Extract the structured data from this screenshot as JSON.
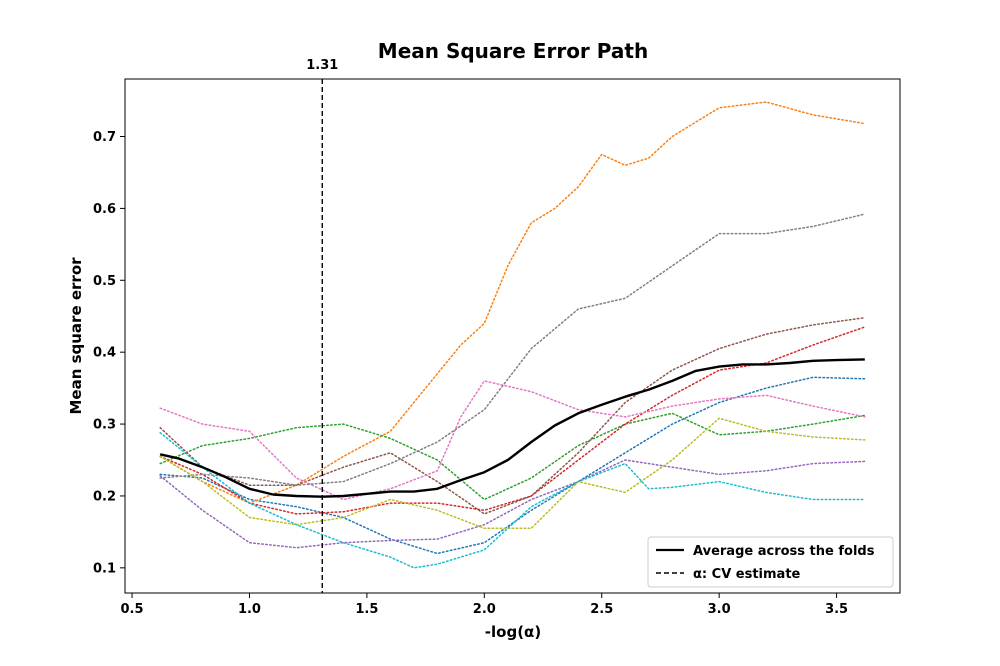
{
  "chart_data": {
    "type": "line",
    "title": "Mean Square Error Path",
    "xlabel": "-log(α)",
    "ylabel": "Mean square error",
    "xlim": [
      0.47,
      3.77
    ],
    "ylim": [
      0.065,
      0.78
    ],
    "xticks": [
      0.5,
      1.0,
      1.5,
      2.0,
      2.5,
      3.0,
      3.5
    ],
    "xtick_labels": [
      "0.5",
      "1.0",
      "1.5",
      "2.0",
      "2.5",
      "3.0",
      "3.5"
    ],
    "yticks": [
      0.1,
      0.2,
      0.3,
      0.4,
      0.5,
      0.6,
      0.7
    ],
    "ytick_labels": [
      "0.1",
      "0.2",
      "0.3",
      "0.4",
      "0.5",
      "0.6",
      "0.7"
    ],
    "grid": false,
    "legend_position": "bottom-right",
    "vline": {
      "x": 1.31,
      "label": "1.31",
      "style": "dashed",
      "color": "#000000"
    },
    "legend": [
      {
        "label": "Average across the folds",
        "style": "solid"
      },
      {
        "label": "α: CV estimate",
        "style": "dashed"
      }
    ],
    "mean": {
      "color": "#000000",
      "points": [
        [
          0.62,
          0.258
        ],
        [
          0.7,
          0.252
        ],
        [
          0.8,
          0.24
        ],
        [
          0.9,
          0.226
        ],
        [
          1.0,
          0.21
        ],
        [
          1.1,
          0.202
        ],
        [
          1.2,
          0.2
        ],
        [
          1.31,
          0.199
        ],
        [
          1.4,
          0.2
        ],
        [
          1.5,
          0.203
        ],
        [
          1.6,
          0.206
        ],
        [
          1.7,
          0.206
        ],
        [
          1.8,
          0.21
        ],
        [
          1.9,
          0.222
        ],
        [
          2.0,
          0.233
        ],
        [
          2.1,
          0.25
        ],
        [
          2.2,
          0.275
        ],
        [
          2.3,
          0.298
        ],
        [
          2.4,
          0.315
        ],
        [
          2.5,
          0.327
        ],
        [
          2.6,
          0.338
        ],
        [
          2.7,
          0.348
        ],
        [
          2.8,
          0.36
        ],
        [
          2.9,
          0.374
        ],
        [
          3.0,
          0.38
        ],
        [
          3.1,
          0.383
        ],
        [
          3.2,
          0.383
        ],
        [
          3.3,
          0.385
        ],
        [
          3.4,
          0.388
        ],
        [
          3.5,
          0.389
        ],
        [
          3.62,
          0.39
        ]
      ]
    },
    "series": [
      {
        "color": "#1f77b4",
        "points": [
          [
            0.62,
            0.23
          ],
          [
            0.8,
            0.225
          ],
          [
            1.0,
            0.195
          ],
          [
            1.2,
            0.185
          ],
          [
            1.4,
            0.17
          ],
          [
            1.6,
            0.14
          ],
          [
            1.8,
            0.12
          ],
          [
            2.0,
            0.135
          ],
          [
            2.2,
            0.18
          ],
          [
            2.4,
            0.22
          ],
          [
            2.6,
            0.26
          ],
          [
            2.8,
            0.3
          ],
          [
            3.0,
            0.33
          ],
          [
            3.2,
            0.35
          ],
          [
            3.4,
            0.365
          ],
          [
            3.62,
            0.363
          ]
        ]
      },
      {
        "color": "#ff7f0e",
        "points": [
          [
            0.62,
            0.255
          ],
          [
            0.8,
            0.22
          ],
          [
            1.0,
            0.19
          ],
          [
            1.2,
            0.215
          ],
          [
            1.4,
            0.255
          ],
          [
            1.6,
            0.29
          ],
          [
            1.8,
            0.37
          ],
          [
            1.9,
            0.41
          ],
          [
            2.0,
            0.44
          ],
          [
            2.1,
            0.52
          ],
          [
            2.2,
            0.58
          ],
          [
            2.3,
            0.6
          ],
          [
            2.4,
            0.63
          ],
          [
            2.5,
            0.675
          ],
          [
            2.6,
            0.66
          ],
          [
            2.7,
            0.67
          ],
          [
            2.8,
            0.7
          ],
          [
            3.0,
            0.74
          ],
          [
            3.2,
            0.748
          ],
          [
            3.4,
            0.73
          ],
          [
            3.62,
            0.718
          ]
        ]
      },
      {
        "color": "#2ca02c",
        "points": [
          [
            0.62,
            0.245
          ],
          [
            0.8,
            0.27
          ],
          [
            1.0,
            0.28
          ],
          [
            1.2,
            0.295
          ],
          [
            1.4,
            0.3
          ],
          [
            1.6,
            0.28
          ],
          [
            1.8,
            0.25
          ],
          [
            2.0,
            0.195
          ],
          [
            2.2,
            0.225
          ],
          [
            2.4,
            0.27
          ],
          [
            2.6,
            0.3
          ],
          [
            2.8,
            0.315
          ],
          [
            3.0,
            0.285
          ],
          [
            3.2,
            0.29
          ],
          [
            3.4,
            0.3
          ],
          [
            3.62,
            0.312
          ]
        ]
      },
      {
        "color": "#d62728",
        "points": [
          [
            0.62,
            0.255
          ],
          [
            0.8,
            0.23
          ],
          [
            1.0,
            0.19
          ],
          [
            1.2,
            0.175
          ],
          [
            1.4,
            0.178
          ],
          [
            1.6,
            0.19
          ],
          [
            1.8,
            0.19
          ],
          [
            2.0,
            0.18
          ],
          [
            2.2,
            0.2
          ],
          [
            2.4,
            0.25
          ],
          [
            2.6,
            0.3
          ],
          [
            2.8,
            0.34
          ],
          [
            3.0,
            0.375
          ],
          [
            3.2,
            0.385
          ],
          [
            3.4,
            0.41
          ],
          [
            3.62,
            0.435
          ]
        ]
      },
      {
        "color": "#9467bd",
        "points": [
          [
            0.62,
            0.228
          ],
          [
            0.8,
            0.18
          ],
          [
            1.0,
            0.135
          ],
          [
            1.2,
            0.128
          ],
          [
            1.4,
            0.135
          ],
          [
            1.6,
            0.138
          ],
          [
            1.8,
            0.14
          ],
          [
            2.0,
            0.16
          ],
          [
            2.2,
            0.195
          ],
          [
            2.4,
            0.22
          ],
          [
            2.6,
            0.25
          ],
          [
            2.8,
            0.24
          ],
          [
            3.0,
            0.23
          ],
          [
            3.2,
            0.235
          ],
          [
            3.4,
            0.245
          ],
          [
            3.62,
            0.248
          ]
        ]
      },
      {
        "color": "#8c564b",
        "points": [
          [
            0.62,
            0.295
          ],
          [
            0.8,
            0.24
          ],
          [
            1.0,
            0.215
          ],
          [
            1.2,
            0.215
          ],
          [
            1.4,
            0.24
          ],
          [
            1.6,
            0.26
          ],
          [
            1.8,
            0.22
          ],
          [
            2.0,
            0.175
          ],
          [
            2.2,
            0.2
          ],
          [
            2.4,
            0.26
          ],
          [
            2.6,
            0.33
          ],
          [
            2.8,
            0.375
          ],
          [
            3.0,
            0.405
          ],
          [
            3.2,
            0.425
          ],
          [
            3.4,
            0.438
          ],
          [
            3.62,
            0.448
          ]
        ]
      },
      {
        "color": "#e377c2",
        "points": [
          [
            0.62,
            0.322
          ],
          [
            0.8,
            0.3
          ],
          [
            1.0,
            0.29
          ],
          [
            1.2,
            0.225
          ],
          [
            1.4,
            0.195
          ],
          [
            1.6,
            0.21
          ],
          [
            1.8,
            0.235
          ],
          [
            1.9,
            0.31
          ],
          [
            2.0,
            0.36
          ],
          [
            2.2,
            0.345
          ],
          [
            2.4,
            0.32
          ],
          [
            2.6,
            0.31
          ],
          [
            2.8,
            0.325
          ],
          [
            3.0,
            0.335
          ],
          [
            3.2,
            0.34
          ],
          [
            3.4,
            0.325
          ],
          [
            3.62,
            0.31
          ]
        ]
      },
      {
        "color": "#7f7f7f",
        "points": [
          [
            0.62,
            0.225
          ],
          [
            0.8,
            0.23
          ],
          [
            1.0,
            0.225
          ],
          [
            1.2,
            0.215
          ],
          [
            1.4,
            0.22
          ],
          [
            1.6,
            0.245
          ],
          [
            1.8,
            0.275
          ],
          [
            2.0,
            0.32
          ],
          [
            2.2,
            0.405
          ],
          [
            2.4,
            0.46
          ],
          [
            2.6,
            0.475
          ],
          [
            2.8,
            0.52
          ],
          [
            3.0,
            0.565
          ],
          [
            3.2,
            0.565
          ],
          [
            3.4,
            0.575
          ],
          [
            3.62,
            0.592
          ]
        ]
      },
      {
        "color": "#bcbd22",
        "points": [
          [
            0.62,
            0.255
          ],
          [
            0.8,
            0.22
          ],
          [
            1.0,
            0.17
          ],
          [
            1.2,
            0.16
          ],
          [
            1.4,
            0.17
          ],
          [
            1.6,
            0.195
          ],
          [
            1.8,
            0.18
          ],
          [
            2.0,
            0.155
          ],
          [
            2.2,
            0.155
          ],
          [
            2.4,
            0.22
          ],
          [
            2.6,
            0.205
          ],
          [
            2.8,
            0.25
          ],
          [
            3.0,
            0.308
          ],
          [
            3.2,
            0.29
          ],
          [
            3.4,
            0.282
          ],
          [
            3.62,
            0.278
          ]
        ]
      },
      {
        "color": "#17becf",
        "points": [
          [
            0.62,
            0.288
          ],
          [
            0.8,
            0.24
          ],
          [
            1.0,
            0.19
          ],
          [
            1.2,
            0.16
          ],
          [
            1.4,
            0.135
          ],
          [
            1.6,
            0.115
          ],
          [
            1.7,
            0.1
          ],
          [
            1.8,
            0.105
          ],
          [
            2.0,
            0.125
          ],
          [
            2.2,
            0.185
          ],
          [
            2.4,
            0.22
          ],
          [
            2.6,
            0.245
          ],
          [
            2.7,
            0.21
          ],
          [
            2.8,
            0.212
          ],
          [
            3.0,
            0.22
          ],
          [
            3.2,
            0.205
          ],
          [
            3.4,
            0.195
          ],
          [
            3.62,
            0.195
          ]
        ]
      }
    ]
  }
}
